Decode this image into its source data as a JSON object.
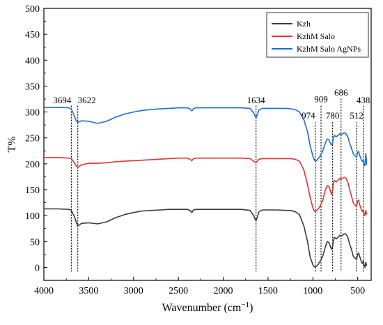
{
  "chart_data": {
    "type": "line",
    "title": "",
    "xlabel": "Wavenumber (cm",
    "xlabel_sup": "−1",
    "xlabel_close": ")",
    "ylabel": "T%",
    "xlim": [
      4000,
      350
    ],
    "ylim": [
      -25,
      500
    ],
    "x_ticks": [
      4000,
      3500,
      3000,
      2500,
      2000,
      1500,
      1000,
      500
    ],
    "y_ticks": [
      0,
      50,
      100,
      150,
      200,
      250,
      300,
      350,
      400,
      450,
      500
    ],
    "grid": false,
    "legend_position": "top-right",
    "series": [
      {
        "name": "Kzh",
        "color": "#3a3a3a",
        "points": [
          [
            4000,
            113
          ],
          [
            3850,
            113
          ],
          [
            3720,
            112
          ],
          [
            3694,
            110
          ],
          [
            3660,
            98
          ],
          [
            3640,
            88
          ],
          [
            3622,
            80
          ],
          [
            3580,
            85
          ],
          [
            3500,
            86
          ],
          [
            3400,
            84
          ],
          [
            3300,
            88
          ],
          [
            3200,
            96
          ],
          [
            3100,
            102
          ],
          [
            3000,
            106
          ],
          [
            2900,
            109
          ],
          [
            2800,
            110
          ],
          [
            2700,
            111
          ],
          [
            2600,
            112
          ],
          [
            2500,
            112
          ],
          [
            2400,
            112
          ],
          [
            2370,
            110
          ],
          [
            2350,
            106
          ],
          [
            2330,
            111
          ],
          [
            2300,
            112
          ],
          [
            2100,
            112
          ],
          [
            2000,
            112
          ],
          [
            1900,
            112
          ],
          [
            1800,
            112
          ],
          [
            1700,
            110
          ],
          [
            1660,
            100
          ],
          [
            1645,
            93
          ],
          [
            1634,
            90
          ],
          [
            1620,
            97
          ],
          [
            1600,
            108
          ],
          [
            1560,
            111
          ],
          [
            1500,
            111
          ],
          [
            1400,
            111
          ],
          [
            1300,
            110
          ],
          [
            1250,
            110
          ],
          [
            1200,
            108
          ],
          [
            1150,
            102
          ],
          [
            1100,
            80
          ],
          [
            1060,
            50
          ],
          [
            1030,
            20
          ],
          [
            1000,
            5
          ],
          [
            990,
            2
          ],
          [
            974,
            0
          ],
          [
            960,
            2
          ],
          [
            940,
            6
          ],
          [
            920,
            12
          ],
          [
            909,
            15
          ],
          [
            890,
            22
          ],
          [
            860,
            40
          ],
          [
            840,
            50
          ],
          [
            820,
            48
          ],
          [
            800,
            38
          ],
          [
            790,
            35
          ],
          [
            780,
            40
          ],
          [
            770,
            52
          ],
          [
            760,
            58
          ],
          [
            740,
            55
          ],
          [
            720,
            58
          ],
          [
            700,
            62
          ],
          [
            686,
            60
          ],
          [
            670,
            62
          ],
          [
            650,
            65
          ],
          [
            630,
            64
          ],
          [
            610,
            58
          ],
          [
            590,
            45
          ],
          [
            570,
            35
          ],
          [
            550,
            22
          ],
          [
            530,
            18
          ],
          [
            512,
            16
          ],
          [
            500,
            25
          ],
          [
            490,
            28
          ],
          [
            480,
            22
          ],
          [
            460,
            12
          ],
          [
            450,
            8
          ],
          [
            438,
            12
          ],
          [
            430,
            5
          ],
          [
            420,
            0
          ],
          [
            410,
            10
          ],
          [
            400,
            3
          ]
        ]
      },
      {
        "name": "KzhM Salo",
        "color": "#e03232",
        "points": [
          [
            4000,
            212
          ],
          [
            3850,
            212
          ],
          [
            3720,
            211
          ],
          [
            3694,
            210
          ],
          [
            3660,
            202
          ],
          [
            3640,
            196
          ],
          [
            3622,
            193
          ],
          [
            3580,
            198
          ],
          [
            3500,
            201
          ],
          [
            3400,
            201
          ],
          [
            3300,
            202
          ],
          [
            3200,
            204
          ],
          [
            3100,
            205
          ],
          [
            3000,
            206
          ],
          [
            2900,
            207
          ],
          [
            2800,
            208
          ],
          [
            2700,
            209
          ],
          [
            2600,
            210
          ],
          [
            2500,
            211
          ],
          [
            2400,
            211
          ],
          [
            2370,
            209
          ],
          [
            2350,
            206
          ],
          [
            2330,
            210
          ],
          [
            2300,
            211
          ],
          [
            2100,
            211
          ],
          [
            2000,
            211
          ],
          [
            1900,
            211
          ],
          [
            1800,
            211
          ],
          [
            1700,
            210
          ],
          [
            1660,
            205
          ],
          [
            1645,
            203
          ],
          [
            1634,
            202
          ],
          [
            1620,
            205
          ],
          [
            1600,
            209
          ],
          [
            1560,
            210
          ],
          [
            1500,
            210
          ],
          [
            1400,
            210
          ],
          [
            1300,
            210
          ],
          [
            1250,
            210
          ],
          [
            1200,
            209
          ],
          [
            1150,
            205
          ],
          [
            1100,
            188
          ],
          [
            1060,
            160
          ],
          [
            1030,
            135
          ],
          [
            1000,
            115
          ],
          [
            990,
            110
          ],
          [
            974,
            108
          ],
          [
            960,
            110
          ],
          [
            940,
            113
          ],
          [
            920,
            118
          ],
          [
            909,
            122
          ],
          [
            890,
            130
          ],
          [
            860,
            150
          ],
          [
            840,
            158
          ],
          [
            820,
            156
          ],
          [
            800,
            145
          ],
          [
            790,
            140
          ],
          [
            780,
            148
          ],
          [
            770,
            162
          ],
          [
            760,
            168
          ],
          [
            740,
            165
          ],
          [
            720,
            168
          ],
          [
            700,
            172
          ],
          [
            686,
            170
          ],
          [
            670,
            172
          ],
          [
            650,
            174
          ],
          [
            630,
            172
          ],
          [
            610,
            165
          ],
          [
            590,
            150
          ],
          [
            570,
            138
          ],
          [
            550,
            125
          ],
          [
            530,
            120
          ],
          [
            512,
            118
          ],
          [
            500,
            128
          ],
          [
            490,
            130
          ],
          [
            480,
            122
          ],
          [
            460,
            112
          ],
          [
            450,
            108
          ],
          [
            438,
            112
          ],
          [
            430,
            104
          ],
          [
            420,
            100
          ],
          [
            410,
            110
          ],
          [
            400,
            102
          ]
        ]
      },
      {
        "name": "KzhM Salo AgNPs",
        "color": "#1f6bd6",
        "points": [
          [
            4000,
            309
          ],
          [
            3850,
            309
          ],
          [
            3720,
            308
          ],
          [
            3694,
            306
          ],
          [
            3660,
            292
          ],
          [
            3640,
            283
          ],
          [
            3622,
            280
          ],
          [
            3580,
            283
          ],
          [
            3500,
            282
          ],
          [
            3400,
            278
          ],
          [
            3300,
            282
          ],
          [
            3200,
            290
          ],
          [
            3100,
            296
          ],
          [
            3000,
            300
          ],
          [
            2900,
            303
          ],
          [
            2800,
            305
          ],
          [
            2700,
            306
          ],
          [
            2600,
            307
          ],
          [
            2500,
            308
          ],
          [
            2400,
            308
          ],
          [
            2370,
            306
          ],
          [
            2350,
            302
          ],
          [
            2330,
            307
          ],
          [
            2300,
            308
          ],
          [
            2100,
            308
          ],
          [
            2000,
            308
          ],
          [
            1900,
            308
          ],
          [
            1800,
            308
          ],
          [
            1700,
            307
          ],
          [
            1660,
            298
          ],
          [
            1645,
            292
          ],
          [
            1634,
            288
          ],
          [
            1620,
            295
          ],
          [
            1600,
            304
          ],
          [
            1560,
            307
          ],
          [
            1500,
            307
          ],
          [
            1400,
            307
          ],
          [
            1300,
            307
          ],
          [
            1250,
            306
          ],
          [
            1200,
            305
          ],
          [
            1150,
            300
          ],
          [
            1100,
            285
          ],
          [
            1060,
            262
          ],
          [
            1030,
            235
          ],
          [
            1000,
            215
          ],
          [
            990,
            210
          ],
          [
            974,
            205
          ],
          [
            960,
            206
          ],
          [
            940,
            210
          ],
          [
            920,
            215
          ],
          [
            909,
            218
          ],
          [
            890,
            225
          ],
          [
            860,
            240
          ],
          [
            840,
            248
          ],
          [
            820,
            246
          ],
          [
            800,
            238
          ],
          [
            790,
            236
          ],
          [
            780,
            240
          ],
          [
            770,
            250
          ],
          [
            760,
            255
          ],
          [
            740,
            252
          ],
          [
            720,
            255
          ],
          [
            700,
            258
          ],
          [
            686,
            256
          ],
          [
            670,
            258
          ],
          [
            650,
            260
          ],
          [
            630,
            258
          ],
          [
            610,
            252
          ],
          [
            590,
            240
          ],
          [
            570,
            230
          ],
          [
            550,
            220
          ],
          [
            530,
            215
          ],
          [
            512,
            213
          ],
          [
            500,
            222
          ],
          [
            490,
            224
          ],
          [
            480,
            217
          ],
          [
            460,
            208
          ],
          [
            450,
            205
          ],
          [
            438,
            208
          ],
          [
            430,
            200
          ],
          [
            420,
            196
          ],
          [
            410,
            220
          ],
          [
            400,
            198
          ]
        ]
      }
    ],
    "annotations": [
      {
        "x": 3694,
        "label": "3694",
        "label_y": 317,
        "anchor": "end"
      },
      {
        "x": 3622,
        "label": "3622",
        "label_y": 317,
        "anchor": "start"
      },
      {
        "x": 1634,
        "label": "1634",
        "label_y": 317,
        "anchor": "middle"
      },
      {
        "x": 974,
        "label": "974",
        "label_y": 287,
        "anchor": "end"
      },
      {
        "x": 909,
        "label": "909",
        "label_y": 319,
        "anchor": "middle"
      },
      {
        "x": 780,
        "label": "780",
        "label_y": 287,
        "anchor": "middle"
      },
      {
        "x": 686,
        "label": "686",
        "label_y": 332,
        "anchor": "middle"
      },
      {
        "x": 512,
        "label": "512",
        "label_y": 287,
        "anchor": "middle"
      },
      {
        "x": 438,
        "label": "438",
        "label_y": 317,
        "anchor": "middle"
      }
    ],
    "marker_lines": [
      {
        "x": 3694,
        "y_top": 312
      },
      {
        "x": 3622,
        "y_top": 312
      },
      {
        "x": 1634,
        "y_top": 312
      },
      {
        "x": 974,
        "y_top": 280
      },
      {
        "x": 909,
        "y_top": 312
      },
      {
        "x": 780,
        "y_top": 280
      },
      {
        "x": 686,
        "y_top": 326
      },
      {
        "x": 512,
        "y_top": 280
      },
      {
        "x": 438,
        "y_top": 312
      }
    ],
    "marker_y_bottom": -8
  }
}
